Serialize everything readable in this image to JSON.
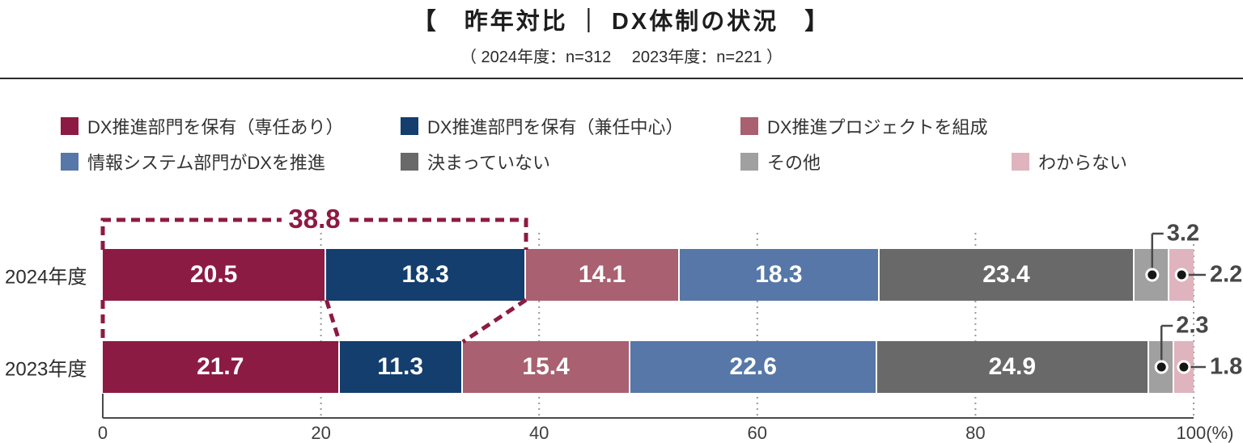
{
  "header": {
    "title": "【　昨年対比 ｜ DX体制の状況　】",
    "subtitle": "（ 2024年度：n=312　 2023年度：n=221 ）"
  },
  "chart_data": {
    "type": "bar",
    "stacked": true,
    "orientation": "horizontal",
    "title": "【　昨年対比 ｜ DX体制の状況　】",
    "subtitle": "（ 2024年度：n=312　 2023年度：n=221 ）",
    "categories": [
      "2024年度",
      "2023年度"
    ],
    "series": [
      {
        "name": "DX推進部門を保有（専任あり）",
        "color": "#8c1b43",
        "values": [
          20.5,
          21.7
        ]
      },
      {
        "name": "DX推進部門を保有（兼任中心）",
        "color": "#133e6e",
        "values": [
          18.3,
          11.3
        ]
      },
      {
        "name": "DX推進プロジェクトを組成",
        "color": "#a96070",
        "values": [
          14.1,
          15.4
        ]
      },
      {
        "name": "情報システム部門がDXを推進",
        "color": "#5677a8",
        "values": [
          18.3,
          22.6
        ]
      },
      {
        "name": "決まっていない",
        "color": "#696969",
        "values": [
          23.4,
          24.9
        ]
      },
      {
        "name": "その他",
        "color": "#a0a0a0",
        "values": [
          3.2,
          2.3
        ]
      },
      {
        "name": "わからない",
        "color": "#dfb4be",
        "values": [
          2.2,
          1.8
        ]
      }
    ],
    "x_axis": {
      "ticks": [
        "0",
        "20",
        "40",
        "60",
        "80",
        "100(%)"
      ],
      "range": [
        0,
        100
      ],
      "grid": "dotted"
    },
    "annotation": {
      "label": "38.8",
      "value": 38.8,
      "row": "2024年度"
    },
    "legend_position": "top",
    "accent_color": "#8c1b43"
  }
}
